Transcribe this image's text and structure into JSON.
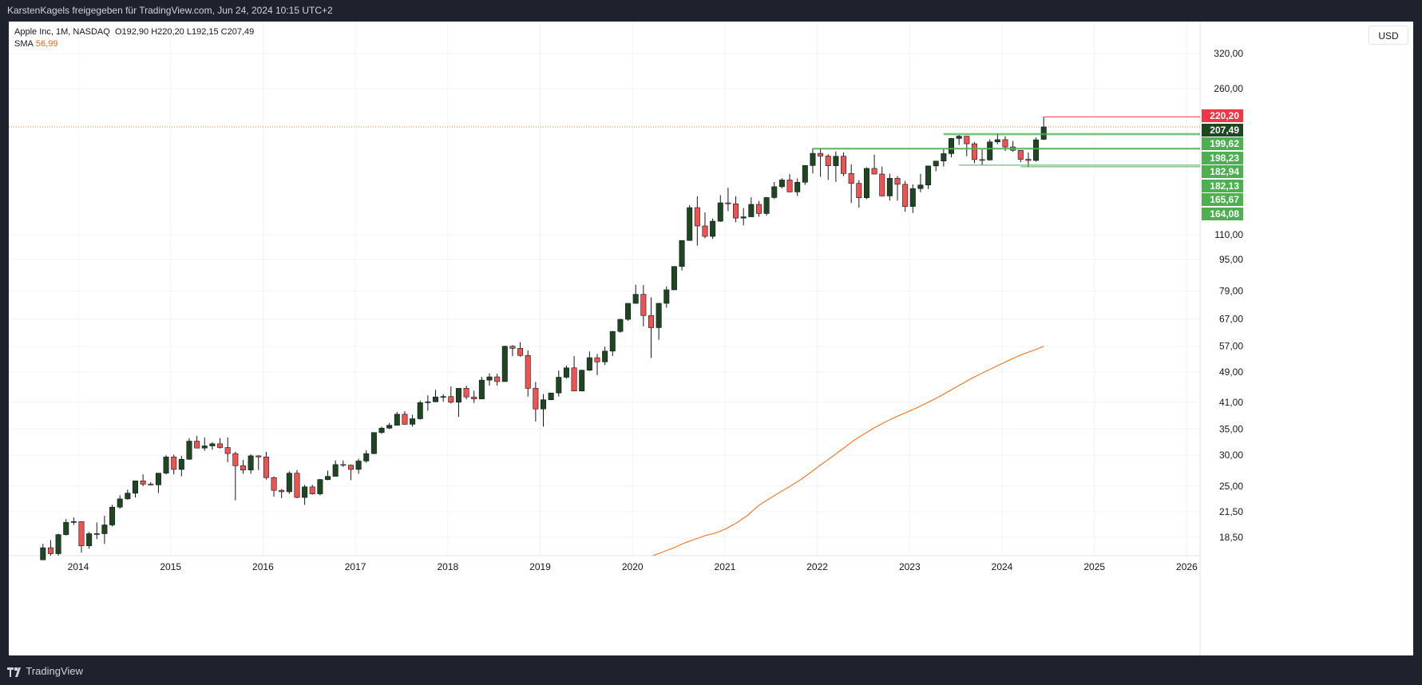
{
  "header": {
    "title": "KarstenKagels freigegeben für TradingView.com, Jun 24, 2024 10:15 UTC+2"
  },
  "legend": {
    "symbol": "Apple Inc, 1M, NASDAQ",
    "ohlc": "O192,90  H220,20  L192,15  C207,49",
    "sma_label": "SMA",
    "sma_value": "56,99"
  },
  "currency_button": "USD",
  "footer": {
    "brand": "TradingView"
  },
  "colors": {
    "up": "#1e4620",
    "down": "#ef5350",
    "sma": "#f57c2a",
    "green_label": "#4caf50",
    "red_label": "#f23645",
    "dark_label": "#1e4620"
  },
  "chart_data": {
    "type": "candlestick",
    "y_scale": "log",
    "x_ticks": [
      "2014",
      "2015",
      "2016",
      "2017",
      "2018",
      "2019",
      "2020",
      "2021",
      "2022",
      "2023",
      "2024",
      "2025",
      "2026"
    ],
    "y_ticks": [
      "320,00",
      "260,00",
      "110,00",
      "95,00",
      "79,00",
      "67,00",
      "57,00",
      "49,00",
      "41,00",
      "35,00",
      "30,00",
      "25,00",
      "21,50",
      "18,50"
    ],
    "price_labels": [
      {
        "text": "220,20",
        "style": "red"
      },
      {
        "text": "207,49",
        "style": "dark"
      },
      {
        "text": "199,62",
        "style": "green"
      },
      {
        "text": "198,23",
        "style": "green"
      },
      {
        "text": "182,94",
        "style": "green"
      },
      {
        "text": "182,13",
        "style": "green"
      },
      {
        "text": "165,67",
        "style": "green"
      },
      {
        "text": "164,08",
        "style": "green"
      }
    ],
    "candles": [
      [
        16.2,
        17.8,
        15.4,
        17.4
      ],
      [
        17.4,
        18.2,
        16.1,
        16.8
      ],
      [
        16.8,
        18.9,
        16.6,
        18.8
      ],
      [
        18.8,
        20.6,
        18.7,
        20.2
      ],
      [
        20.2,
        20.8,
        19.9,
        20.3
      ],
      [
        20.3,
        20.3,
        16.9,
        17.6
      ],
      [
        17.6,
        19.1,
        17.3,
        18.9
      ],
      [
        18.9,
        20.2,
        18.3,
        18.9
      ],
      [
        18.9,
        21.0,
        17.8,
        19.9
      ],
      [
        19.9,
        22.4,
        19.7,
        22.1
      ],
      [
        22.1,
        23.7,
        21.9,
        23.2
      ],
      [
        23.2,
        24.5,
        23.1,
        24.0
      ],
      [
        24.0,
        25.8,
        23.4,
        25.8
      ],
      [
        25.8,
        26.8,
        25.0,
        25.3
      ],
      [
        25.3,
        25.6,
        25.1,
        25.2
      ],
      [
        25.2,
        27.0,
        24.0,
        27.0
      ],
      [
        27.0,
        30.0,
        26.8,
        29.7
      ],
      [
        29.7,
        30.1,
        26.8,
        27.6
      ],
      [
        27.6,
        29.9,
        26.5,
        29.3
      ],
      [
        29.3,
        33.2,
        29.2,
        32.6
      ],
      [
        32.6,
        33.6,
        31.4,
        31.3
      ],
      [
        31.3,
        33.3,
        30.8,
        31.7
      ],
      [
        31.7,
        32.4,
        31.0,
        32.1
      ],
      [
        32.1,
        33.2,
        31.2,
        31.4
      ],
      [
        31.4,
        33.3,
        28.8,
        30.3
      ],
      [
        30.3,
        30.6,
        23.0,
        28.2
      ],
      [
        28.2,
        29.2,
        26.9,
        27.5
      ],
      [
        27.5,
        30.2,
        26.9,
        29.9
      ],
      [
        29.9,
        30.0,
        27.5,
        29.7
      ],
      [
        29.7,
        30.6,
        26.0,
        26.3
      ],
      [
        26.3,
        26.5,
        23.5,
        24.4
      ],
      [
        24.4,
        24.6,
        23.3,
        24.2
      ],
      [
        24.2,
        27.3,
        23.9,
        27.0
      ],
      [
        27.0,
        27.5,
        23.3,
        23.4
      ],
      [
        23.4,
        25.2,
        22.4,
        24.9
      ],
      [
        24.9,
        25.2,
        23.8,
        23.9
      ],
      [
        23.9,
        26.1,
        23.7,
        26.0
      ],
      [
        26.0,
        27.4,
        25.9,
        26.5
      ],
      [
        26.5,
        29.1,
        26.5,
        28.4
      ],
      [
        28.4,
        29.1,
        28.0,
        28.3
      ],
      [
        28.3,
        28.4,
        25.9,
        27.6
      ],
      [
        27.6,
        29.4,
        26.9,
        29.0
      ],
      [
        29.0,
        30.9,
        28.7,
        30.3
      ],
      [
        30.3,
        34.0,
        30.2,
        34.3
      ],
      [
        34.3,
        35.5,
        34.0,
        35.2
      ],
      [
        35.2,
        36.3,
        35.0,
        35.8
      ],
      [
        35.8,
        38.7,
        35.8,
        38.2
      ],
      [
        38.2,
        38.9,
        35.9,
        36.0
      ],
      [
        36.0,
        38.1,
        35.5,
        37.2
      ],
      [
        37.2,
        41.4,
        37.0,
        40.9
      ],
      [
        40.9,
        42.7,
        39.0,
        41.1
      ],
      [
        41.1,
        44.1,
        41.0,
        42.3
      ],
      [
        42.3,
        43.0,
        41.1,
        42.4
      ],
      [
        42.4,
        45.0,
        40.7,
        41.0
      ],
      [
        41.0,
        44.3,
        37.6,
        44.5
      ],
      [
        44.5,
        45.2,
        41.7,
        42.3
      ],
      [
        42.3,
        43.9,
        40.8,
        41.8
      ],
      [
        41.8,
        47.6,
        41.7,
        46.7
      ],
      [
        46.7,
        48.6,
        45.2,
        47.6
      ],
      [
        47.6,
        48.5,
        45.2,
        46.3
      ],
      [
        46.3,
        57.2,
        46.3,
        57.0
      ],
      [
        57.0,
        57.4,
        53.8,
        56.3
      ],
      [
        56.3,
        58.4,
        53.6,
        54.0
      ],
      [
        54.0,
        55.6,
        42.4,
        44.5
      ],
      [
        44.5,
        46.2,
        36.6,
        39.4
      ],
      [
        39.4,
        43.0,
        35.5,
        41.6
      ],
      [
        41.6,
        43.1,
        41.5,
        43.3
      ],
      [
        43.3,
        49.4,
        42.4,
        47.5
      ],
      [
        47.5,
        50.9,
        47.1,
        50.2
      ],
      [
        50.2,
        53.8,
        43.8,
        43.8
      ],
      [
        43.8,
        49.7,
        43.7,
        49.5
      ],
      [
        49.5,
        55.3,
        49.3,
        53.3
      ],
      [
        53.3,
        54.5,
        48.1,
        52.0
      ],
      [
        52.0,
        56.9,
        51.0,
        55.4
      ],
      [
        55.4,
        62.4,
        53.8,
        62.2
      ],
      [
        62.2,
        67.0,
        61.7,
        66.8
      ],
      [
        66.8,
        73.4,
        66.2,
        73.4
      ],
      [
        73.4,
        81.9,
        73.2,
        77.4
      ],
      [
        77.4,
        81.8,
        64.1,
        68.3
      ],
      [
        68.3,
        76.0,
        53.2,
        63.6
      ],
      [
        63.6,
        73.6,
        59.2,
        73.4
      ],
      [
        73.4,
        81.1,
        71.6,
        79.5
      ],
      [
        79.5,
        91.4,
        79.3,
        91.2
      ],
      [
        91.2,
        106.4,
        89.1,
        106.3
      ],
      [
        106.3,
        131.0,
        107.9,
        129.0
      ],
      [
        129.0,
        137.9,
        103.1,
        115.8
      ],
      [
        115.8,
        125.4,
        107.7,
        108.9
      ],
      [
        108.9,
        121.0,
        107.3,
        119.1
      ],
      [
        119.1,
        138.8,
        118.6,
        132.7
      ],
      [
        132.7,
        145.1,
        126.4,
        131.9
      ],
      [
        131.9,
        137.9,
        118.4,
        121.3
      ],
      [
        121.3,
        128.7,
        116.2,
        122.2
      ],
      [
        122.2,
        137.1,
        122.5,
        131.5
      ],
      [
        131.5,
        134.1,
        122.3,
        124.6
      ],
      [
        124.6,
        137.4,
        123.1,
        136.9
      ],
      [
        136.9,
        150.0,
        135.8,
        145.9
      ],
      [
        145.9,
        153.5,
        144.5,
        151.8
      ],
      [
        151.8,
        157.3,
        141.3,
        141.5
      ],
      [
        141.5,
        153.2,
        138.3,
        149.8
      ],
      [
        149.8,
        165.7,
        147.5,
        165.3
      ],
      [
        165.3,
        182.9,
        157.8,
        177.6
      ],
      [
        177.6,
        182.9,
        154.7,
        174.8
      ],
      [
        174.8,
        176.7,
        152.0,
        165.1
      ],
      [
        165.1,
        179.6,
        150.1,
        174.6
      ],
      [
        174.6,
        178.5,
        155.4,
        157.7
      ],
      [
        157.7,
        166.5,
        132.6,
        148.8
      ],
      [
        148.8,
        151.7,
        129.0,
        136.7
      ],
      [
        136.7,
        163.6,
        135.6,
        162.5
      ],
      [
        162.5,
        176.2,
        157.1,
        157.2
      ],
      [
        157.2,
        164.3,
        138.0,
        138.2
      ],
      [
        138.2,
        157.5,
        134.4,
        153.3
      ],
      [
        153.3,
        155.4,
        134.4,
        148.0
      ],
      [
        148.0,
        151.0,
        125.9,
        129.9
      ],
      [
        129.9,
        148.0,
        125.0,
        144.3
      ],
      [
        144.3,
        157.4,
        141.3,
        147.4
      ],
      [
        147.4,
        165.0,
        143.9,
        164.9
      ],
      [
        164.9,
        169.9,
        159.8,
        169.7
      ],
      [
        169.7,
        181.9,
        164.3,
        177.3
      ],
      [
        177.3,
        194.5,
        173.5,
        193.9
      ],
      [
        193.9,
        198.2,
        186.6,
        196.5
      ],
      [
        196.5,
        196.7,
        174.6,
        187.9
      ],
      [
        187.9,
        189.9,
        167.6,
        171.2
      ],
      [
        171.2,
        182.3,
        165.7,
        170.8
      ],
      [
        170.8,
        192.9,
        170.1,
        190.0
      ],
      [
        190.0,
        199.6,
        187.5,
        192.5
      ],
      [
        192.5,
        196.4,
        180.2,
        184.4
      ],
      [
        184.4,
        191.1,
        179.3,
        180.8
      ],
      [
        180.8,
        180.5,
        168.5,
        171.5
      ],
      [
        171.5,
        178.4,
        164.1,
        170.3
      ],
      [
        170.3,
        195.0,
        169.1,
        192.3
      ],
      [
        192.9,
        220.2,
        192.2,
        207.5
      ]
    ],
    "sma_points": [
      [
        0.0,
        15.2
      ],
      [
        0.5,
        15.3
      ],
      [
        1.0,
        15.4
      ],
      [
        1.5,
        15.5
      ],
      [
        2.0,
        15.8
      ],
      [
        2.5,
        16.2
      ],
      [
        3.0,
        16.6
      ],
      [
        3.5,
        17.0
      ],
      [
        4.0,
        17.4
      ],
      [
        4.5,
        17.9
      ],
      [
        5.0,
        18.3
      ],
      [
        5.5,
        18.7
      ],
      [
        6.0,
        19.0
      ],
      [
        6.5,
        19.5
      ],
      [
        7.0,
        20.2
      ],
      [
        7.5,
        21.1
      ],
      [
        8.0,
        22.3
      ],
      [
        8.5,
        23.2
      ],
      [
        9.0,
        24.1
      ],
      [
        9.5,
        25.0
      ],
      [
        10.0,
        26.0
      ],
      [
        10.5,
        27.2
      ],
      [
        11.0,
        28.5
      ],
      [
        11.5,
        29.8
      ],
      [
        12.0,
        31.2
      ],
      [
        12.5,
        32.7
      ],
      [
        13.0,
        34.0
      ],
      [
        13.5,
        35.3
      ],
      [
        14.0,
        36.5
      ],
      [
        14.5,
        37.6
      ],
      [
        15.0,
        38.6
      ],
      [
        15.5,
        39.7
      ],
      [
        16.0,
        40.9
      ],
      [
        16.5,
        42.2
      ],
      [
        17.0,
        43.7
      ],
      [
        17.5,
        45.3
      ],
      [
        18.0,
        46.9
      ],
      [
        18.5,
        48.4
      ],
      [
        19.0,
        49.9
      ],
      [
        19.5,
        51.4
      ],
      [
        20.0,
        52.9
      ],
      [
        20.5,
        54.4
      ],
      [
        21.0,
        55.6
      ],
      [
        21.5,
        56.99
      ]
    ]
  }
}
